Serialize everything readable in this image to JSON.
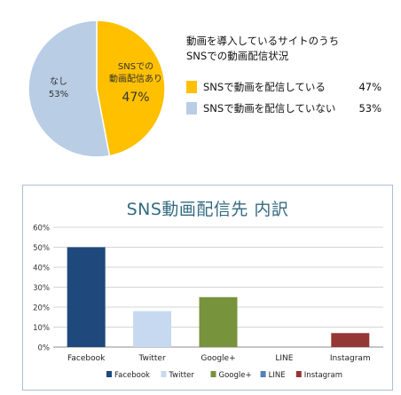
{
  "chart_data": [
    {
      "type": "pie",
      "title_lines": [
        "動画を導入しているサイトのうち",
        "SNSでの動画配信状況"
      ],
      "slices": [
        {
          "name": "SNSで動画を配信している",
          "value": 47,
          "value_label": "47%",
          "color": "#ffc000",
          "inner_label_lines": [
            "SNSでの",
            "動画配信あり"
          ],
          "inner_value": "47%"
        },
        {
          "name": "SNSで動画を配信していない",
          "value": 53,
          "value_label": "53%",
          "color": "#b9cde5",
          "inner_label_lines": [
            "なし"
          ],
          "inner_value": "53%"
        }
      ],
      "legend_position": "right"
    },
    {
      "type": "bar",
      "title": "SNS動画配信先 内訳",
      "categories": [
        "Facebook",
        "Twitter",
        "Google+",
        "LINE",
        "Instagram"
      ],
      "values": [
        0.5,
        0.18,
        0.25,
        0.0,
        0.07
      ],
      "colors": [
        "#1f497d",
        "#c6d9f1",
        "#77933c",
        "#4f81bd",
        "#953735"
      ],
      "ylim": [
        0,
        0.6
      ],
      "yticks": [
        "0%",
        "10%",
        "20%",
        "30%",
        "40%",
        "50%",
        "60%"
      ],
      "grid": true,
      "legend_position": "bottom"
    }
  ]
}
